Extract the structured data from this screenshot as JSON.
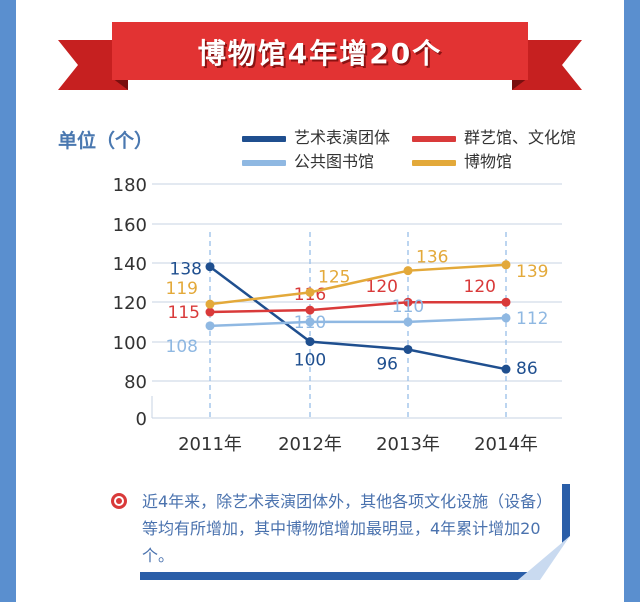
{
  "title": "博物馆4年增20个",
  "unit_label": "单位（个）",
  "note": "近4年来，除艺术表演团体外，其他各项文化设施（设备）等均有所增加，其中博物馆增加最明显，4年累计增加20个。",
  "chart_data": {
    "type": "line",
    "categories": [
      "2011年",
      "2012年",
      "2013年",
      "2014年"
    ],
    "y_ticks": [
      "180",
      "160",
      "140",
      "120",
      "100",
      "80",
      "0"
    ],
    "grid": true,
    "legend_position": "top",
    "series": [
      {
        "name": "艺术表演团体",
        "color": "#1f4f8f",
        "values": [
          138,
          100,
          96,
          86
        ]
      },
      {
        "name": "群艺馆、文化馆",
        "color": "#d93a3a",
        "values": [
          115,
          116,
          120,
          120
        ]
      },
      {
        "name": "公共图书馆",
        "color": "#8fb8e2",
        "values": [
          108,
          110,
          110,
          112
        ]
      },
      {
        "name": "博物馆",
        "color": "#e3a93a",
        "values": [
          119,
          125,
          136,
          139
        ]
      }
    ]
  }
}
